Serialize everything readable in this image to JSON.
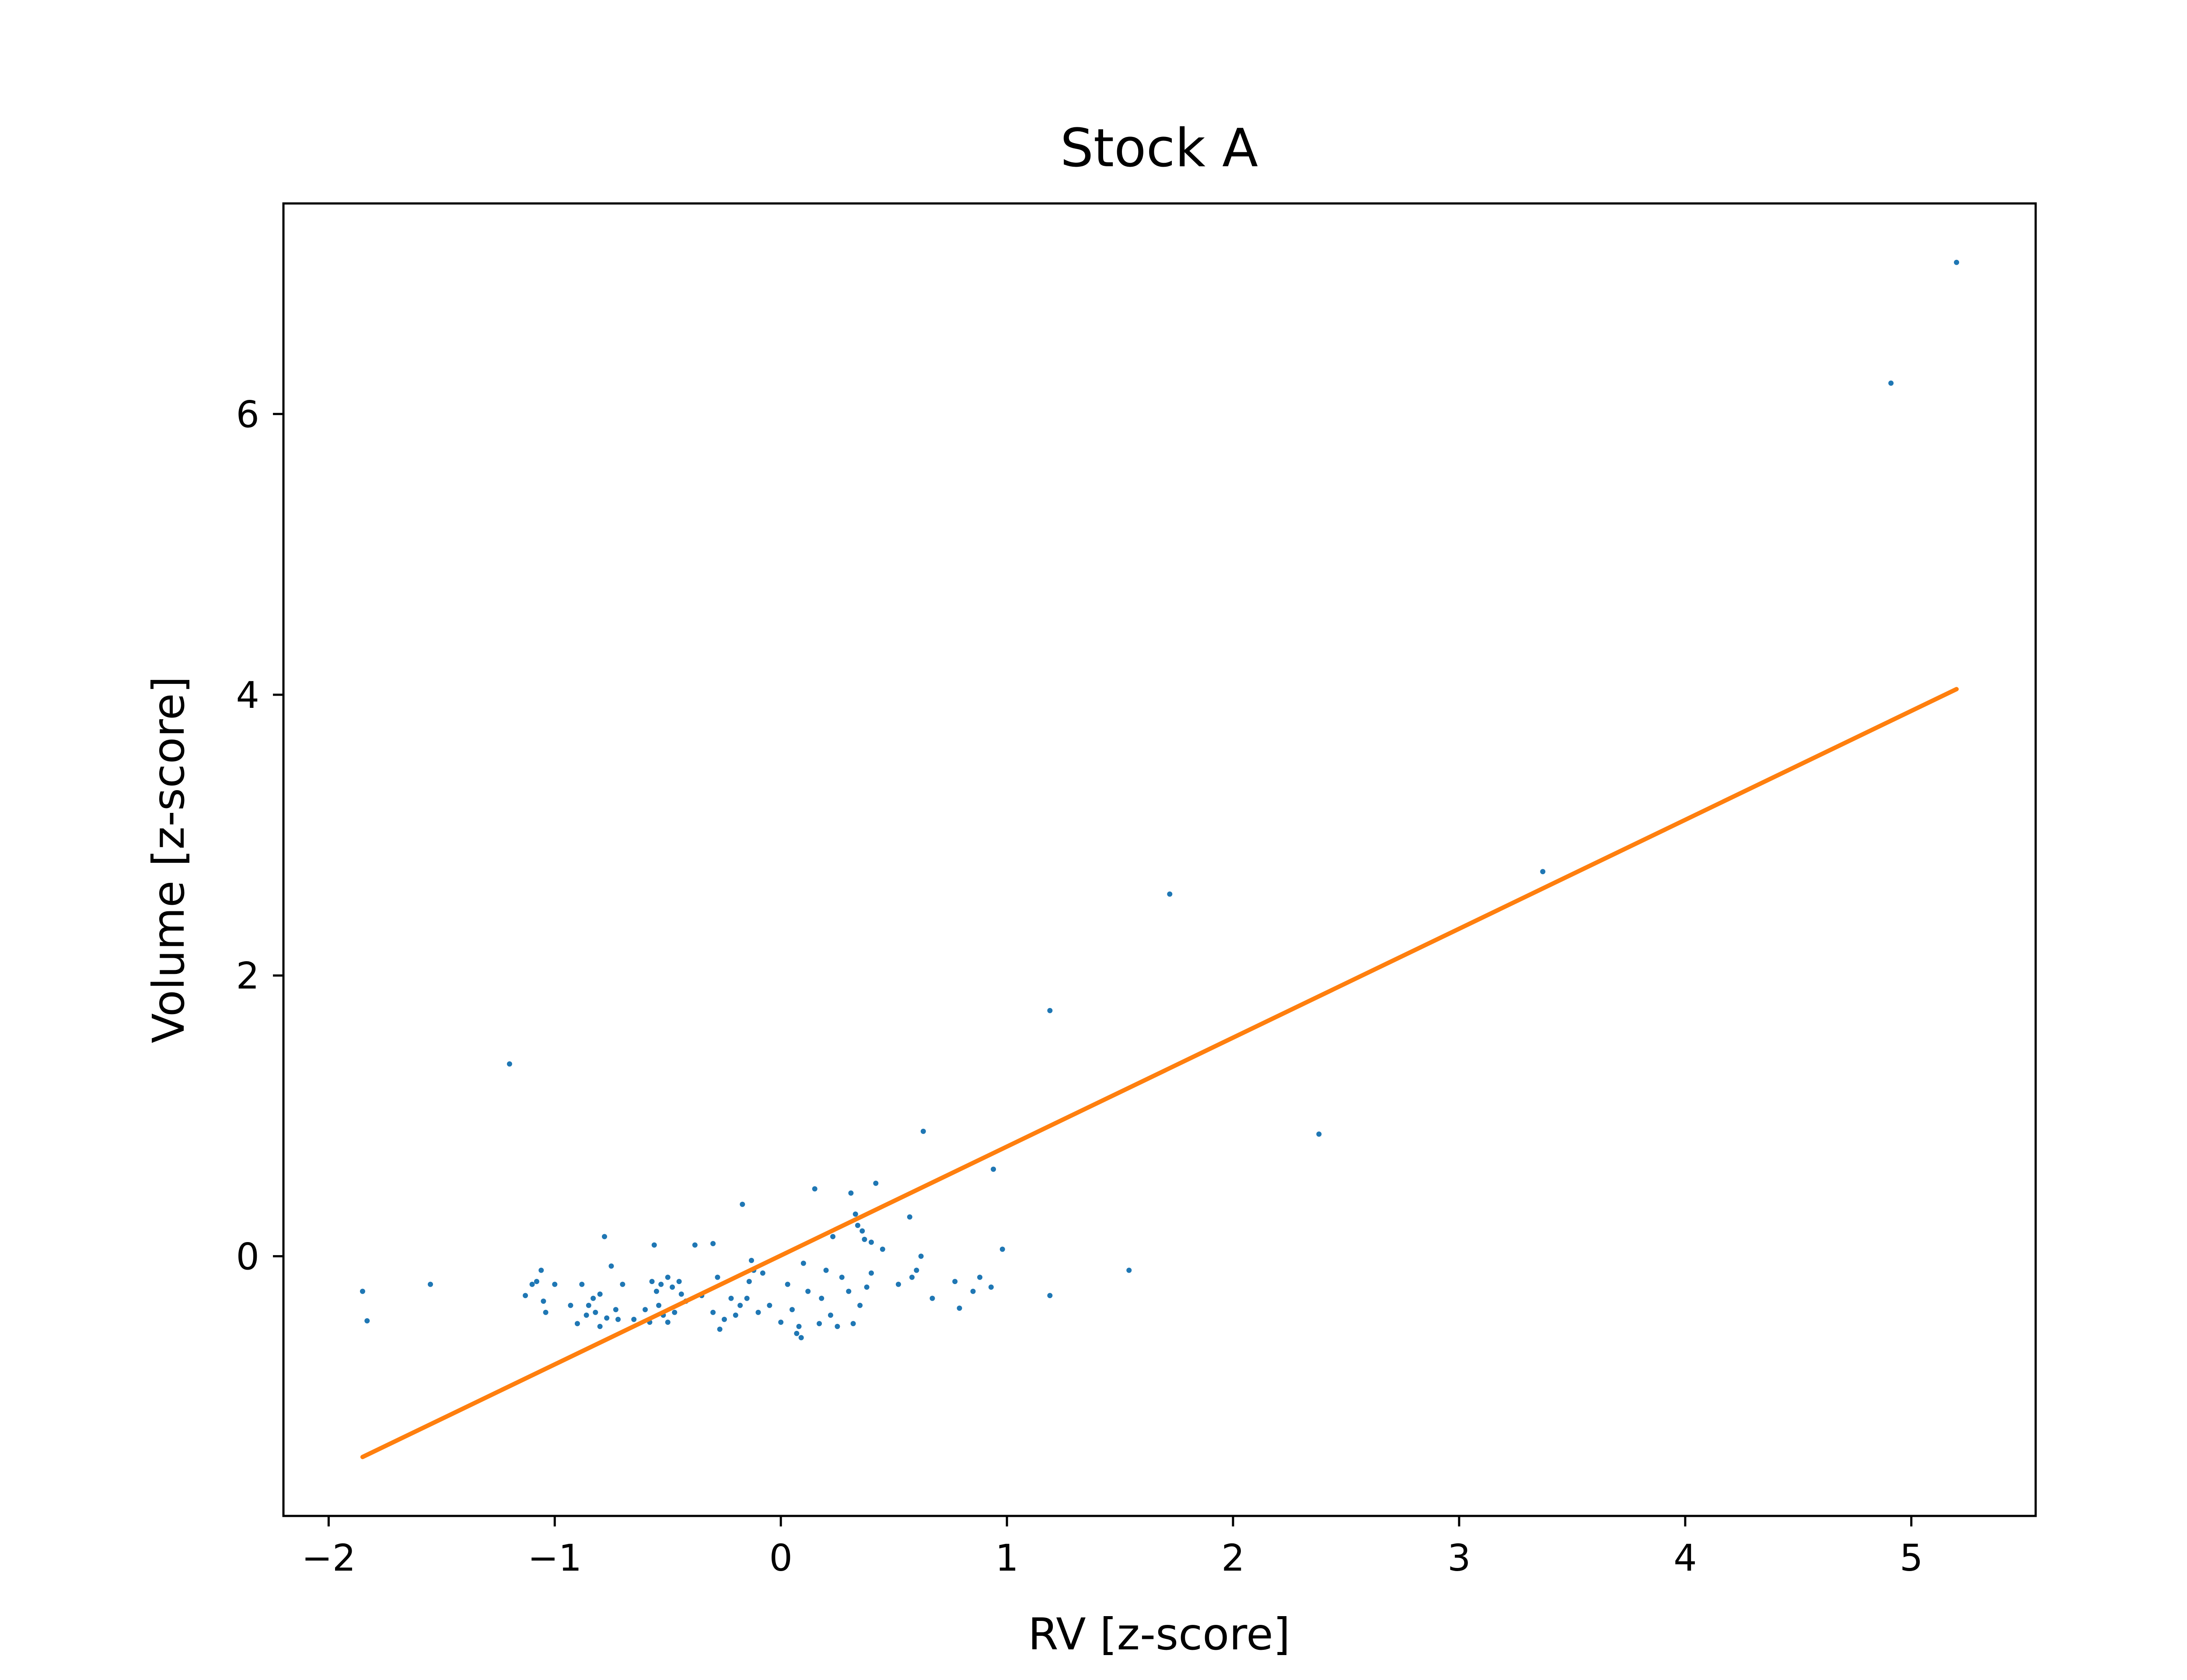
{
  "chart_data": {
    "type": "scatter",
    "title": "Stock A",
    "xlabel": "RV [z-score]",
    "ylabel": "Volume [z-score]",
    "xlim": [
      -2.2,
      5.55
    ],
    "ylim": [
      -1.85,
      7.5
    ],
    "xticks": [
      -2,
      -1,
      0,
      1,
      2,
      3,
      4,
      5
    ],
    "xtick_labels": [
      "−2",
      "−1",
      "0",
      "1",
      "2",
      "3",
      "4",
      "5"
    ],
    "yticks": [
      0,
      2,
      4,
      6
    ],
    "ytick_labels": [
      "0",
      "2",
      "4",
      "6"
    ],
    "grid": false,
    "colors": {
      "points": "#1f77b4",
      "fit_line": "#ff7f0e",
      "axes": "#000000"
    },
    "series": [
      {
        "type": "scatter",
        "points": [
          [
            -1.85,
            -0.25
          ],
          [
            -1.83,
            -0.46
          ],
          [
            -1.55,
            -0.2
          ],
          [
            -1.2,
            1.37
          ],
          [
            -1.13,
            -0.28
          ],
          [
            -1.1,
            -0.2
          ],
          [
            -1.08,
            -0.18
          ],
          [
            -1.06,
            -0.1
          ],
          [
            -1.05,
            -0.32
          ],
          [
            -1.04,
            -0.4
          ],
          [
            -1.0,
            -0.2
          ],
          [
            -0.93,
            -0.35
          ],
          [
            -0.9,
            -0.48
          ],
          [
            -0.88,
            -0.2
          ],
          [
            -0.86,
            -0.42
          ],
          [
            -0.85,
            -0.35
          ],
          [
            -0.83,
            -0.3
          ],
          [
            -0.82,
            -0.4
          ],
          [
            -0.8,
            -0.27
          ],
          [
            -0.8,
            -0.5
          ],
          [
            -0.78,
            0.14
          ],
          [
            -0.77,
            -0.44
          ],
          [
            -0.75,
            -0.07
          ],
          [
            -0.73,
            -0.38
          ],
          [
            -0.72,
            -0.45
          ],
          [
            -0.7,
            -0.2
          ],
          [
            -0.65,
            -0.45
          ],
          [
            -0.6,
            -0.38
          ],
          [
            -0.58,
            -0.47
          ],
          [
            -0.57,
            -0.18
          ],
          [
            -0.56,
            0.08
          ],
          [
            -0.55,
            -0.25
          ],
          [
            -0.54,
            -0.35
          ],
          [
            -0.53,
            -0.2
          ],
          [
            -0.52,
            -0.42
          ],
          [
            -0.5,
            -0.47
          ],
          [
            -0.5,
            -0.15
          ],
          [
            -0.48,
            -0.22
          ],
          [
            -0.47,
            -0.4
          ],
          [
            -0.45,
            -0.18
          ],
          [
            -0.44,
            -0.27
          ],
          [
            -0.42,
            -0.32
          ],
          [
            -0.38,
            0.08
          ],
          [
            -0.35,
            -0.28
          ],
          [
            -0.3,
            0.09
          ],
          [
            -0.3,
            -0.4
          ],
          [
            -0.28,
            -0.15
          ],
          [
            -0.27,
            -0.52
          ],
          [
            -0.25,
            -0.45
          ],
          [
            -0.22,
            -0.3
          ],
          [
            -0.2,
            -0.42
          ],
          [
            -0.18,
            -0.35
          ],
          [
            -0.17,
            0.37
          ],
          [
            -0.15,
            -0.3
          ],
          [
            -0.14,
            -0.18
          ],
          [
            -0.13,
            -0.03
          ],
          [
            -0.12,
            -0.1
          ],
          [
            -0.1,
            -0.4
          ],
          [
            -0.08,
            -0.12
          ],
          [
            -0.05,
            -0.35
          ],
          [
            0.0,
            -0.47
          ],
          [
            0.03,
            -0.2
          ],
          [
            0.05,
            -0.38
          ],
          [
            0.07,
            -0.55
          ],
          [
            0.08,
            -0.5
          ],
          [
            0.09,
            -0.58
          ],
          [
            0.1,
            -0.05
          ],
          [
            0.12,
            -0.25
          ],
          [
            0.15,
            0.48
          ],
          [
            0.17,
            -0.48
          ],
          [
            0.18,
            -0.3
          ],
          [
            0.2,
            -0.1
          ],
          [
            0.22,
            -0.42
          ],
          [
            0.23,
            0.14
          ],
          [
            0.25,
            -0.5
          ],
          [
            0.27,
            -0.15
          ],
          [
            0.3,
            -0.25
          ],
          [
            0.31,
            0.45
          ],
          [
            0.32,
            -0.48
          ],
          [
            0.33,
            0.3
          ],
          [
            0.34,
            0.22
          ],
          [
            0.35,
            -0.35
          ],
          [
            0.36,
            0.18
          ],
          [
            0.37,
            0.12
          ],
          [
            0.38,
            -0.22
          ],
          [
            0.4,
            0.1
          ],
          [
            0.4,
            -0.12
          ],
          [
            0.42,
            0.52
          ],
          [
            0.45,
            0.05
          ],
          [
            0.52,
            -0.2
          ],
          [
            0.57,
            0.28
          ],
          [
            0.58,
            -0.15
          ],
          [
            0.6,
            -0.1
          ],
          [
            0.62,
            0.0
          ],
          [
            0.63,
            0.89
          ],
          [
            0.67,
            -0.3
          ],
          [
            0.77,
            -0.18
          ],
          [
            0.79,
            -0.37
          ],
          [
            0.85,
            -0.25
          ],
          [
            0.88,
            -0.15
          ],
          [
            0.93,
            -0.22
          ],
          [
            0.94,
            0.62
          ],
          [
            0.98,
            0.05
          ],
          [
            1.19,
            -0.28
          ],
          [
            1.19,
            1.75
          ],
          [
            1.54,
            -0.1
          ],
          [
            1.72,
            2.58
          ],
          [
            2.38,
            0.87
          ],
          [
            3.37,
            2.74
          ],
          [
            4.91,
            6.22
          ],
          [
            5.2,
            7.08
          ]
        ]
      },
      {
        "type": "line",
        "points": [
          [
            -1.85,
            -1.43
          ],
          [
            5.2,
            4.04
          ]
        ]
      }
    ]
  }
}
